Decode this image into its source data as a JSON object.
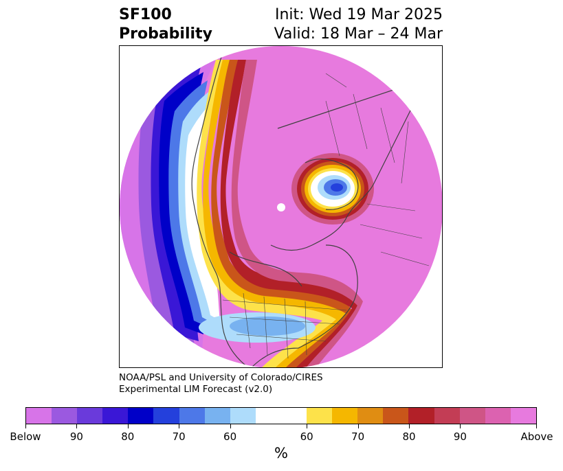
{
  "header": {
    "variable": "SF100",
    "subtitle": "Probability",
    "init": "Init: Wed 19 Mar 2025",
    "valid": "Valid: 18 Mar – 24 Mar"
  },
  "credit": {
    "line1": "NOAA/PSL and University of Colorado/CIRES",
    "line2": "Experimental LIM Forecast (v2.0)"
  },
  "colorbar": {
    "unit": "%",
    "below_colors": [
      "#d774e8",
      "#9b59e0",
      "#6a3adb",
      "#3a17d6",
      "#0000c8",
      "#2440dc",
      "#4d78e8",
      "#78b2f0",
      "#aedcfb"
    ],
    "neutral_color": "#ffffff",
    "above_colors": [
      "#fde24a",
      "#f5b700",
      "#e08d12",
      "#c9561a",
      "#b22028",
      "#c33d55",
      "#cf5586",
      "#dc62b0",
      "#e77ade"
    ],
    "tick_labels": [
      {
        "text": "Below"
      },
      {
        "text": "90"
      },
      {
        "text": "80"
      },
      {
        "text": "70"
      },
      {
        "text": "60"
      },
      {
        "text": "60"
      },
      {
        "text": "70"
      },
      {
        "text": "80"
      },
      {
        "text": "90"
      },
      {
        "text": "Above"
      }
    ]
  },
  "map": {
    "background_color": "#e77ade",
    "boundary_color": "#404040"
  }
}
